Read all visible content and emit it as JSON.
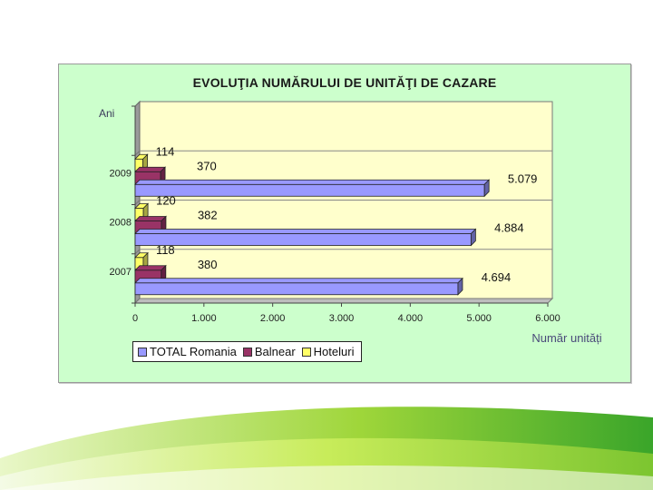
{
  "chart_data": {
    "type": "bar",
    "orientation": "horizontal",
    "title": "EVOLUŢIA NUMĂRULUI DE UNITĂŢI DE CAZARE",
    "ylabel": "Ani",
    "xlabel": "Număr unități",
    "categories": [
      "2009",
      "2008",
      "2007"
    ],
    "x_ticks": [
      "0",
      "1.000",
      "2.000",
      "3.000",
      "4.000",
      "5.000",
      "6.000"
    ],
    "xlim": [
      0,
      6000
    ],
    "series": [
      {
        "name": "TOTAL Romania",
        "color": "#9999ff",
        "values": [
          5079,
          4884,
          4694
        ],
        "labels": [
          "5.079",
          "4.884",
          "4.694"
        ]
      },
      {
        "name": "Balnear",
        "color": "#993366",
        "values": [
          370,
          382,
          380
        ],
        "labels": [
          "370",
          "382",
          "380"
        ]
      },
      {
        "name": "Hoteluri",
        "color": "#ffff66",
        "values": [
          114,
          120,
          118
        ],
        "labels": [
          "114",
          "120",
          "118"
        ]
      }
    ],
    "legend_position": "bottom-left",
    "plot_background": "#ffffcc",
    "grid": false
  },
  "legend": {
    "items": [
      {
        "label": "TOTAL Romania",
        "color": "#9999ff"
      },
      {
        "label": "Balnear",
        "color": "#993366"
      },
      {
        "label": "Hoteluri",
        "color": "#ffff66"
      }
    ]
  }
}
